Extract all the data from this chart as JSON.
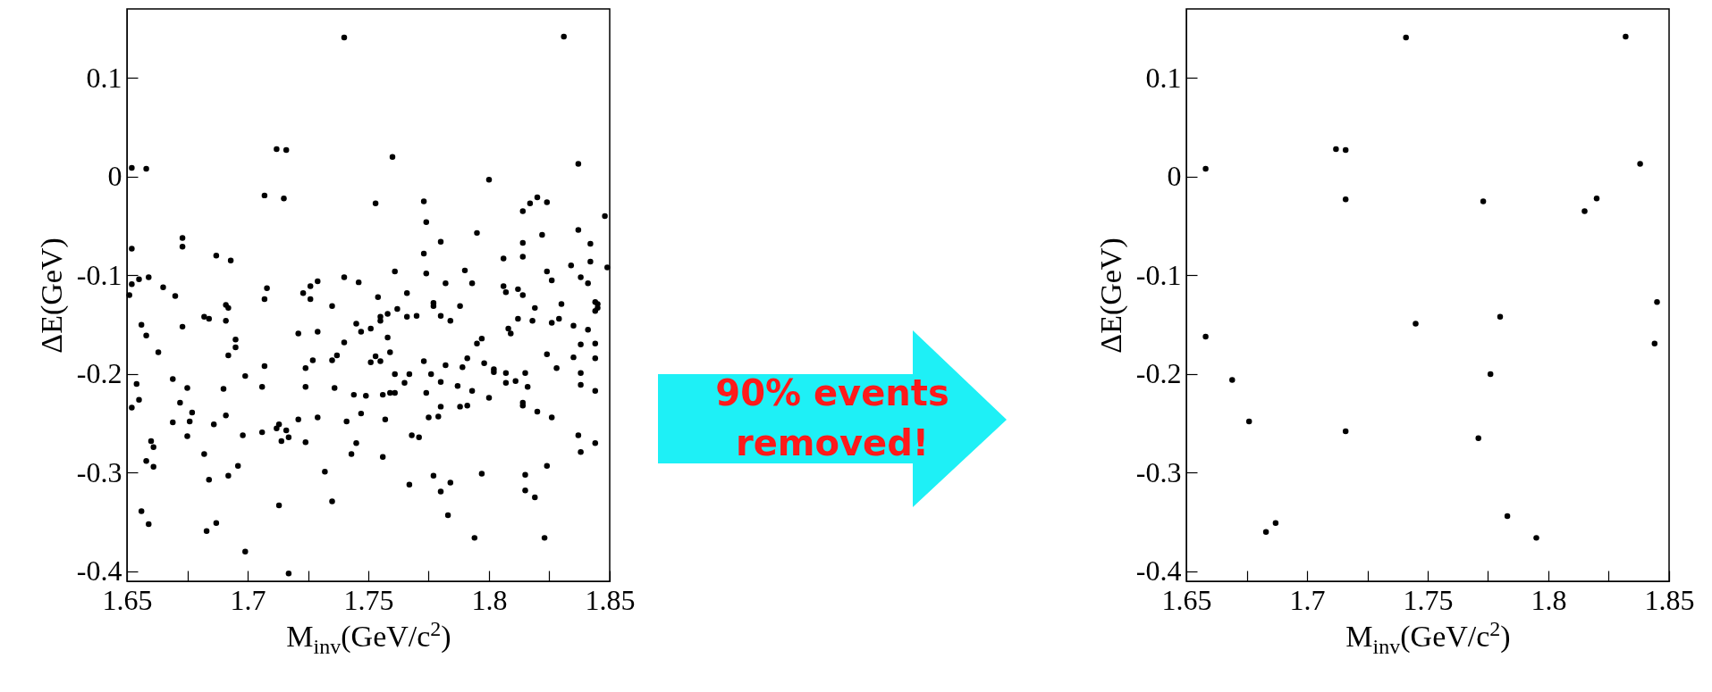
{
  "chart_data": [
    {
      "type": "scatter",
      "xlabel": "M$_{inv}$(GeV/c$^{2}$)",
      "ylabel": "ΔE(GeV)",
      "marker": "circle",
      "color": "#000000",
      "xlim": [
        1.65,
        1.85
      ],
      "ylim": [
        -0.41,
        0.17
      ],
      "xticks": [
        1.65,
        {
          "value": 1.675,
          "label": null
        },
        1.7,
        {
          "value": 1.725,
          "label": null
        },
        1.75,
        {
          "value": 1.775,
          "label": null
        },
        1.8,
        {
          "value": 1.825,
          "label": null
        },
        1.85
      ],
      "yticks": [
        -0.4,
        -0.3,
        -0.2,
        -0.1,
        0,
        0.1
      ],
      "annotations": [
        "90% events removed!"
      ],
      "x": [
        1.74,
        1.712,
        1.716,
        1.652,
        1.658,
        1.707,
        1.715,
        1.753,
        1.652,
        1.673,
        1.673,
        1.687,
        1.693,
        1.74,
        1.746,
        1.652,
        1.655,
        1.659,
        1.665,
        1.67,
        1.651,
        1.708,
        1.707,
        1.723,
        1.726,
        1.729,
        1.726,
        1.754,
        1.831,
        1.76,
        1.837,
        1.8,
        1.773,
        1.774,
        1.814,
        1.817,
        1.82,
        1.824,
        1.848,
        1.78,
        1.795,
        1.773,
        1.822,
        1.837,
        1.814,
        1.842,
        1.814,
        1.806,
        1.842,
        1.849,
        1.761,
        1.774,
        1.79,
        1.834,
        1.824,
        1.782,
        1.793,
        1.826,
        1.838,
        1.841,
        1.806,
        1.807,
        1.812,
        1.814,
        1.766,
        1.691,
        1.692,
        1.735,
        1.682,
        1.684,
        1.691,
        1.656,
        1.673,
        1.658,
        1.663,
        1.695,
        1.695,
        1.692,
        1.721,
        1.729,
        1.745,
        1.747,
        1.751,
        1.755,
        1.755,
        1.74,
        1.737,
        1.735,
        1.727,
        1.724,
        1.753,
        1.751,
        1.755,
        1.707,
        1.699,
        1.654,
        1.655,
        1.652,
        1.669,
        1.675,
        1.672,
        1.677,
        1.676,
        1.669,
        1.69,
        1.691,
        1.686,
        1.675,
        1.66,
        1.661,
        1.658,
        1.661,
        1.656,
        1.659,
        1.682,
        1.684,
        1.683,
        1.687,
        1.692,
        1.696,
        1.699,
        1.698,
        1.706,
        1.706,
        1.712,
        1.713,
        1.716,
        1.717,
        1.714,
        1.713,
        1.717,
        1.721,
        1.724,
        1.724,
        1.729,
        1.732,
        1.735,
        1.736,
        1.741,
        1.744,
        1.749,
        1.747,
        1.745,
        1.743,
        1.777,
        1.777,
        1.788,
        1.762,
        1.758,
        1.766,
        1.77,
        1.78,
        1.784,
        1.758,
        1.759,
        1.761,
        1.767,
        1.765,
        1.756,
        1.759,
        1.761,
        1.757,
        1.756,
        1.768,
        1.771,
        1.767,
        1.773,
        1.776,
        1.774,
        1.78,
        1.782,
        1.775,
        1.779,
        1.78,
        1.777,
        1.78,
        1.784,
        1.783,
        1.794,
        1.787,
        1.789,
        1.791,
        1.788,
        1.791,
        1.793,
        1.795,
        1.797,
        1.798,
        1.8,
        1.797,
        1.802,
        1.802,
        1.807,
        1.807,
        1.811,
        1.808,
        1.809,
        1.812,
        1.818,
        1.819,
        1.815,
        1.816,
        1.814,
        1.814,
        1.82,
        1.815,
        1.815,
        1.819,
        1.823,
        1.824,
        1.824,
        1.826,
        1.829,
        1.83,
        1.828,
        1.826,
        1.835,
        1.841,
        1.838,
        1.835,
        1.838,
        1.838,
        1.844,
        1.844,
        1.844,
        1.837,
        1.838,
        1.844,
        1.844,
        1.845,
        1.845,
        1.844
      ],
      "values": [
        0.141,
        0.028,
        0.027,
        0.009,
        0.008,
        -0.019,
        -0.022,
        -0.027,
        -0.073,
        -0.062,
        -0.071,
        -0.08,
        -0.085,
        -0.102,
        -0.107,
        -0.109,
        -0.104,
        -0.102,
        -0.112,
        -0.121,
        -0.12,
        -0.113,
        -0.124,
        -0.118,
        -0.111,
        -0.106,
        -0.124,
        -0.122,
        0.142,
        0.02,
        0.013,
        -0.003,
        -0.025,
        -0.046,
        -0.035,
        -0.027,
        -0.021,
        -0.026,
        -0.04,
        -0.066,
        -0.057,
        -0.078,
        -0.059,
        -0.054,
        -0.067,
        -0.068,
        -0.081,
        -0.083,
        -0.086,
        -0.092,
        -0.096,
        -0.098,
        -0.095,
        -0.09,
        -0.096,
        -0.108,
        -0.108,
        -0.105,
        -0.102,
        -0.108,
        -0.111,
        -0.117,
        -0.114,
        -0.12,
        -0.118,
        -0.13,
        -0.133,
        -0.131,
        -0.142,
        -0.144,
        -0.146,
        -0.15,
        -0.152,
        -0.161,
        -0.178,
        -0.165,
        -0.173,
        -0.181,
        -0.159,
        -0.157,
        -0.149,
        -0.157,
        -0.154,
        -0.142,
        -0.146,
        -0.168,
        -0.181,
        -0.186,
        -0.186,
        -0.194,
        -0.182,
        -0.188,
        -0.187,
        -0.192,
        -0.202,
        -0.21,
        -0.226,
        -0.234,
        -0.205,
        -0.214,
        -0.229,
        -0.239,
        -0.248,
        -0.249,
        -0.215,
        -0.242,
        -0.251,
        -0.263,
        -0.268,
        -0.274,
        -0.288,
        -0.294,
        -0.339,
        -0.352,
        -0.281,
        -0.307,
        -0.359,
        -0.351,
        -0.303,
        -0.293,
        -0.38,
        -0.262,
        -0.213,
        -0.259,
        -0.255,
        -0.251,
        -0.257,
        -0.264,
        -0.268,
        -0.333,
        -0.402,
        -0.246,
        -0.213,
        -0.269,
        -0.244,
        -0.299,
        -0.329,
        -0.214,
        -0.248,
        -0.221,
        -0.222,
        -0.24,
        -0.27,
        -0.281,
        -0.128,
        -0.131,
        -0.131,
        -0.134,
        -0.139,
        -0.142,
        -0.141,
        -0.141,
        -0.146,
        -0.163,
        -0.178,
        -0.2,
        -0.2,
        -0.209,
        -0.221,
        -0.219,
        -0.219,
        -0.246,
        -0.284,
        -0.262,
        -0.264,
        -0.312,
        -0.187,
        -0.2,
        -0.219,
        -0.208,
        -0.191,
        -0.244,
        -0.243,
        -0.233,
        -0.303,
        -0.319,
        -0.31,
        -0.343,
        -0.366,
        -0.212,
        -0.193,
        -0.184,
        -0.233,
        -0.232,
        -0.217,
        -0.169,
        -0.164,
        -0.189,
        -0.224,
        -0.301,
        -0.195,
        -0.198,
        -0.199,
        -0.209,
        -0.207,
        -0.154,
        -0.159,
        -0.144,
        -0.146,
        -0.133,
        -0.199,
        -0.213,
        -0.229,
        -0.232,
        -0.238,
        -0.302,
        -0.318,
        -0.325,
        -0.366,
        -0.293,
        -0.18,
        -0.148,
        -0.144,
        -0.129,
        -0.194,
        -0.244,
        -0.151,
        -0.155,
        -0.17,
        -0.183,
        -0.199,
        -0.211,
        -0.169,
        -0.184,
        -0.217,
        -0.262,
        -0.279,
        -0.27,
        -0.127,
        -0.129,
        -0.133,
        -0.136
      ]
    },
    {
      "type": "scatter",
      "xlabel": "M$_{inv}$(GeV/c$^{2}$)",
      "ylabel": "ΔE(GeV)",
      "marker": "circle",
      "color": "#000000",
      "xlim": [
        1.65,
        1.85
      ],
      "ylim": [
        -0.41,
        0.17
      ],
      "xticks": [
        1.65,
        {
          "value": 1.675,
          "label": null
        },
        1.7,
        {
          "value": 1.725,
          "label": null
        },
        1.75,
        {
          "value": 1.775,
          "label": null
        },
        1.8,
        {
          "value": 1.825,
          "label": null
        },
        1.85
      ],
      "yticks": [
        -0.4,
        -0.3,
        -0.2,
        -0.1,
        0,
        0.1
      ],
      "x": [
        1.741,
        1.832,
        1.712,
        1.716,
        1.658,
        1.838,
        1.716,
        1.773,
        1.82,
        1.815,
        1.845,
        1.844,
        1.658,
        1.745,
        1.78,
        1.776,
        1.669,
        1.676,
        1.716,
        1.771,
        1.783,
        1.795,
        1.687,
        1.683
      ],
      "values": [
        0.141,
        0.142,
        0.028,
        0.027,
        0.008,
        0.013,
        -0.023,
        -0.025,
        -0.022,
        -0.035,
        -0.127,
        -0.169,
        -0.162,
        -0.149,
        -0.142,
        -0.2,
        -0.206,
        -0.248,
        -0.258,
        -0.265,
        -0.344,
        -0.366,
        -0.351,
        -0.36
      ]
    }
  ]
}
